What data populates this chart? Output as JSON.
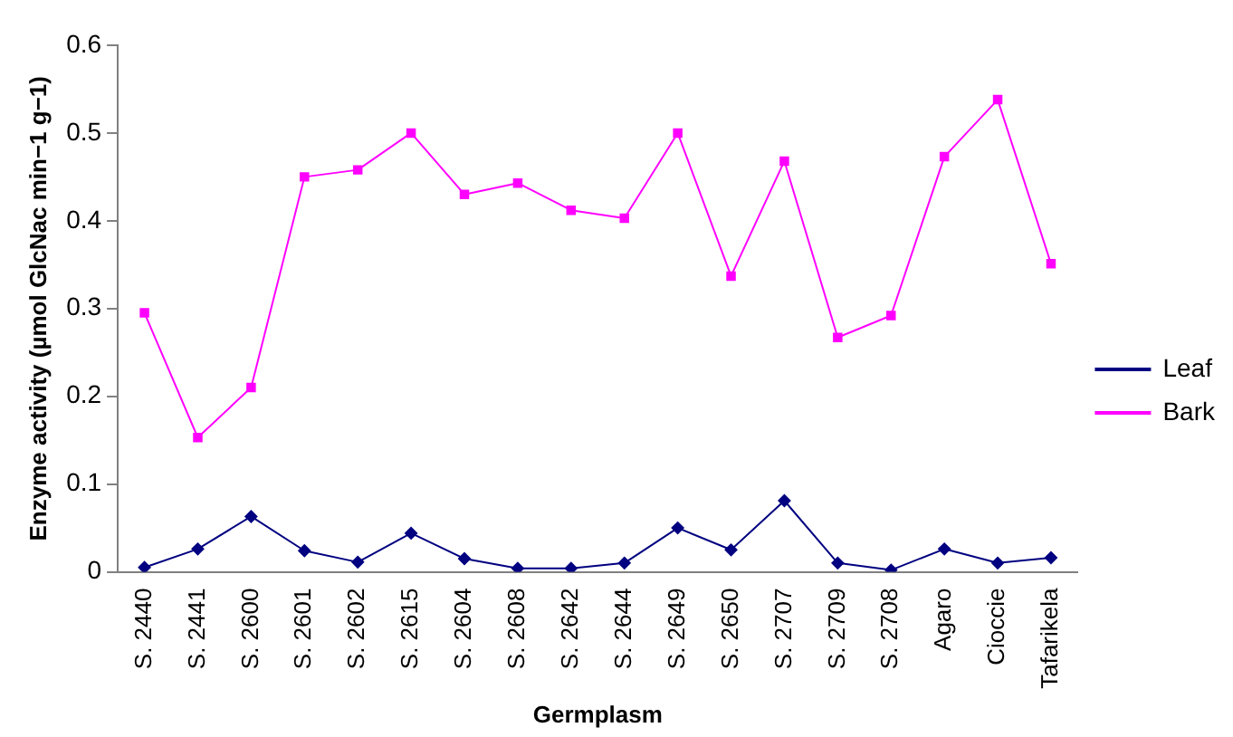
{
  "chart_data": {
    "type": "line",
    "xlabel": "Germplasm",
    "ylabel": "Enzyme activity (µmol GlcNac min−1 g−1)",
    "categories": [
      "S. 2440",
      "S. 2441",
      "S. 2600",
      "S. 2601",
      "S. 2602",
      "S. 2615",
      "S. 2604",
      "S. 2608",
      "S. 2642",
      "S. 2644",
      "S. 2649",
      "S. 2650",
      "S. 2707",
      "S. 2709",
      "S. 2708",
      "Agaro",
      "Cioccie",
      "Tafarikela"
    ],
    "series": [
      {
        "name": "Leaf",
        "color": "#000080",
        "marker": "diamond",
        "values": [
          0.005,
          0.026,
          0.063,
          0.024,
          0.011,
          0.044,
          0.015,
          0.004,
          0.004,
          0.01,
          0.05,
          0.025,
          0.081,
          0.01,
          0.002,
          0.026,
          0.01,
          0.016
        ]
      },
      {
        "name": "Bark",
        "color": "#ff00ff",
        "marker": "square",
        "values": [
          0.295,
          0.153,
          0.21,
          0.45,
          0.458,
          0.5,
          0.43,
          0.443,
          0.412,
          0.403,
          0.5,
          0.337,
          0.468,
          0.267,
          0.292,
          0.473,
          0.538,
          0.351
        ]
      }
    ],
    "ylim": [
      0,
      0.6
    ],
    "yticks": [
      0,
      0.1,
      0.2,
      0.3,
      0.4,
      0.5,
      0.6
    ],
    "grid": false,
    "legend": "right"
  }
}
